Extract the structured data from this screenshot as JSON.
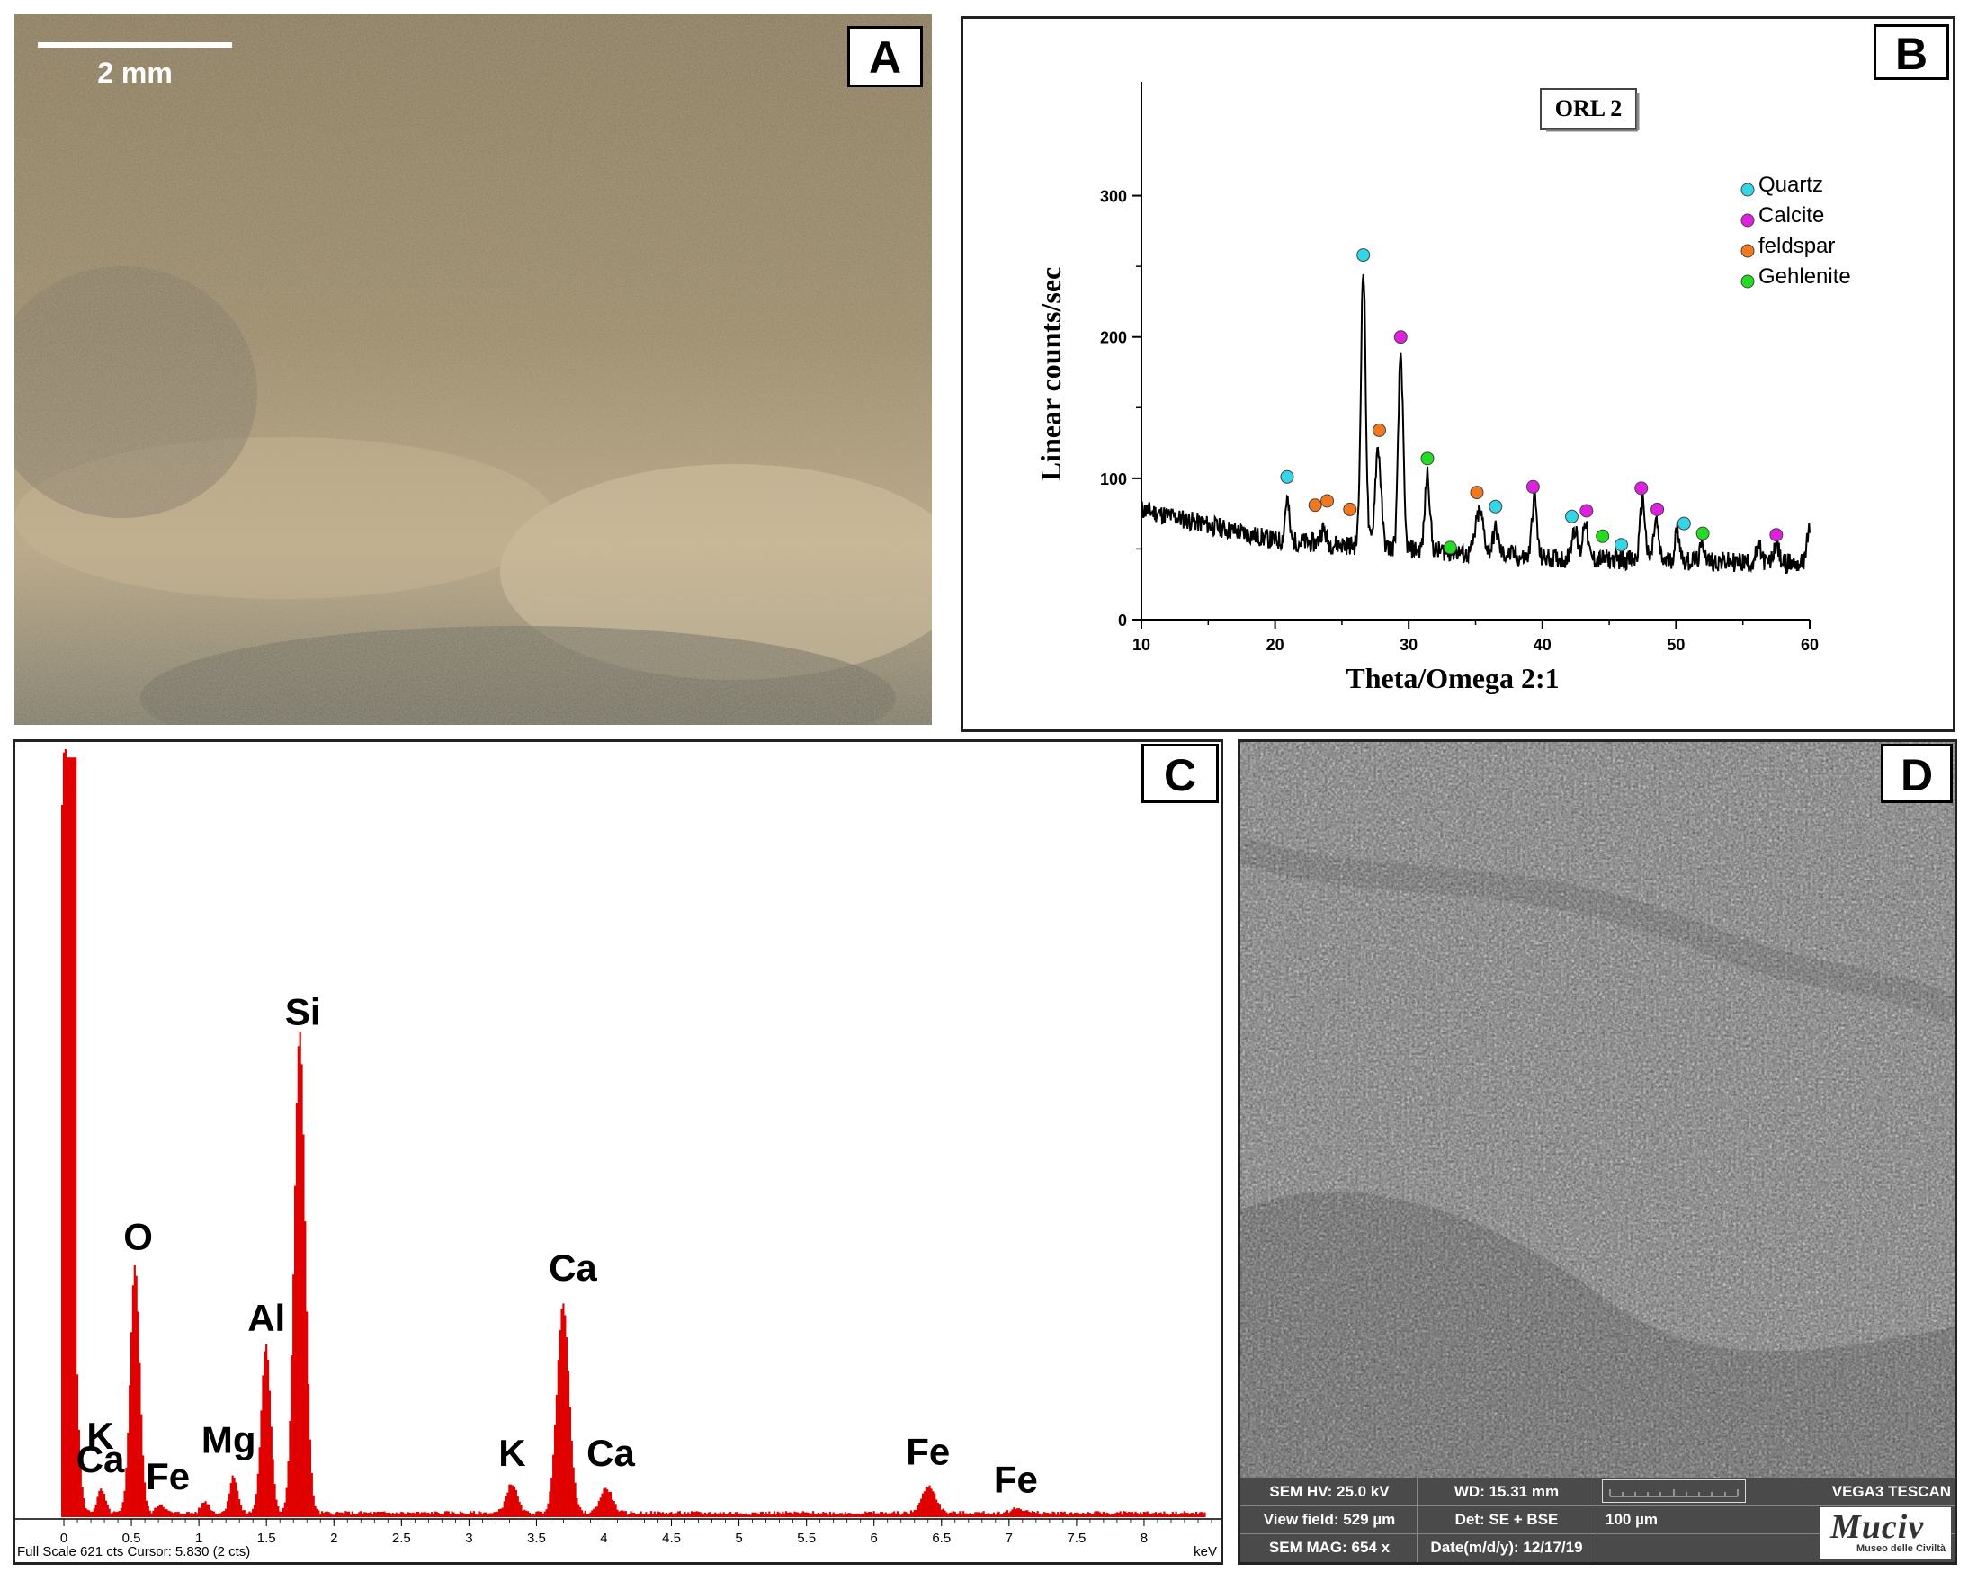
{
  "panels": {
    "a": {
      "label": "A",
      "scalebar_text": "2 mm"
    },
    "b": {
      "label": "B"
    },
    "c": {
      "label": "C"
    },
    "d": {
      "label": "D"
    }
  },
  "chart_data": [
    {
      "type": "line",
      "panel": "B",
      "title": "ORL 2",
      "xlabel": "Theta/Omega 2:1",
      "ylabel": "Linear counts/sec",
      "xlim": [
        10,
        60
      ],
      "ylim": [
        0,
        350
      ],
      "xticks": [
        "10",
        "20",
        "30",
        "40",
        "50",
        "60"
      ],
      "yticks": [
        "0",
        "100",
        "200",
        "300"
      ],
      "legend_position": "top-right",
      "colors": {
        "Quartz": "#33d6e8",
        "Calcite": "#e020e0",
        "feldspar": "#f07820",
        "Gehlenite": "#22dd22",
        "line": "#000000"
      },
      "peaks": [
        {
          "x": 10,
          "y": 78
        },
        {
          "x": 12,
          "y": 65
        },
        {
          "x": 16,
          "y": 56
        },
        {
          "x": 19.5,
          "y": 58
        },
        {
          "x": 20.9,
          "y": 90
        },
        {
          "x": 22,
          "y": 58
        },
        {
          "x": 23.6,
          "y": 68
        },
        {
          "x": 25.6,
          "y": 58
        },
        {
          "x": 26.6,
          "y": 250
        },
        {
          "x": 27.7,
          "y": 125
        },
        {
          "x": 29.4,
          "y": 190
        },
        {
          "x": 31.4,
          "y": 105
        },
        {
          "x": 33,
          "y": 40
        },
        {
          "x": 35.3,
          "y": 80
        },
        {
          "x": 36.5,
          "y": 65
        },
        {
          "x": 39.4,
          "y": 84
        },
        {
          "x": 42.4,
          "y": 62
        },
        {
          "x": 43.2,
          "y": 68
        },
        {
          "x": 45,
          "y": 50
        },
        {
          "x": 47.5,
          "y": 84
        },
        {
          "x": 48.5,
          "y": 68
        },
        {
          "x": 50.1,
          "y": 58
        },
        {
          "x": 52,
          "y": 50
        },
        {
          "x": 57.5,
          "y": 50
        },
        {
          "x": 59.9,
          "y": 58
        }
      ],
      "series": [
        {
          "name": "Quartz",
          "points": [
            [
              20.9,
              101
            ],
            [
              26.6,
              258
            ],
            [
              36.5,
              80
            ],
            [
              42.2,
              73
            ],
            [
              45.9,
              53
            ],
            [
              50.6,
              68
            ]
          ]
        },
        {
          "name": "Calcite",
          "points": [
            [
              29.4,
              200
            ],
            [
              39.3,
              94
            ],
            [
              43.3,
              77
            ],
            [
              47.4,
              93
            ],
            [
              48.6,
              78
            ],
            [
              57.5,
              60
            ]
          ]
        },
        {
          "name": "feldspar",
          "points": [
            [
              23,
              81
            ],
            [
              23.9,
              84
            ],
            [
              25.6,
              78
            ],
            [
              27.8,
              134
            ],
            [
              35.1,
              90
            ]
          ]
        },
        {
          "name": "Gehlenite",
          "points": [
            [
              31.4,
              114
            ],
            [
              33.1,
              51
            ],
            [
              44.5,
              59
            ],
            [
              52,
              61
            ]
          ]
        }
      ]
    },
    {
      "type": "bar",
      "panel": "C",
      "xlabel": "keV",
      "xlim": [
        -0.2,
        8.5
      ],
      "xticks": [
        "0",
        "0.5",
        "1",
        "1.5",
        "2",
        "2.5",
        "3",
        "3.5",
        "4",
        "4.5",
        "5",
        "5.5",
        "6",
        "6.5",
        "7",
        "7.5",
        "8"
      ],
      "footer": "Full Scale 621 cts Cursor: 5.830  (2 cts)",
      "unit": "keV",
      "color": "#e00000",
      "peaks": [
        {
          "x": 0.0,
          "y": 990,
          "w": 0.05
        },
        {
          "x": 0.27,
          "y": 30,
          "w": 0.03
        },
        {
          "x": 0.52,
          "y": 320,
          "w": 0.035
        },
        {
          "x": 0.71,
          "y": 12,
          "w": 0.03
        },
        {
          "x": 1.04,
          "y": 15,
          "w": 0.03
        },
        {
          "x": 1.25,
          "y": 48,
          "w": 0.03
        },
        {
          "x": 1.49,
          "y": 216,
          "w": 0.035
        },
        {
          "x": 1.74,
          "y": 620,
          "w": 0.04
        },
        {
          "x": 3.31,
          "y": 38,
          "w": 0.04
        },
        {
          "x": 3.69,
          "y": 270,
          "w": 0.045
        },
        {
          "x": 4.01,
          "y": 32,
          "w": 0.045
        },
        {
          "x": 6.4,
          "y": 35,
          "w": 0.05
        },
        {
          "x": 7.06,
          "y": 6,
          "w": 0.05
        }
      ],
      "element_labels": [
        {
          "text": "Si",
          "x": 1.77,
          "y": 635
        },
        {
          "text": "O",
          "x": 0.55,
          "y": 345
        },
        {
          "text": "Al",
          "x": 1.5,
          "y": 240
        },
        {
          "text": "Ca",
          "x": 3.77,
          "y": 305
        },
        {
          "text": "K",
          "x": 0.27,
          "y": 88
        },
        {
          "text": "Ca",
          "x": 0.27,
          "y": 58
        },
        {
          "text": "Fe",
          "x": 0.77,
          "y": 36
        },
        {
          "text": "Mg",
          "x": 1.22,
          "y": 83
        },
        {
          "text": "K",
          "x": 3.32,
          "y": 66
        },
        {
          "text": "Ca",
          "x": 4.05,
          "y": 66
        },
        {
          "text": "Fe",
          "x": 6.4,
          "y": 68
        },
        {
          "text": "Fe",
          "x": 7.05,
          "y": 32
        }
      ]
    }
  ],
  "sem_info": {
    "row1": [
      "SEM HV: 25.0 kV",
      "WD: 15.31 mm",
      "",
      "VEGA3 TESCAN"
    ],
    "row2": [
      "View field: 529 µm",
      "Det: SE + BSE",
      "100 µm"
    ],
    "row3": [
      "SEM MAG: 654 x",
      "Date(m/d/y): 12/17/19"
    ],
    "logo_text": "Muciv",
    "logo_subtext": "Museo delle Civiltà"
  }
}
